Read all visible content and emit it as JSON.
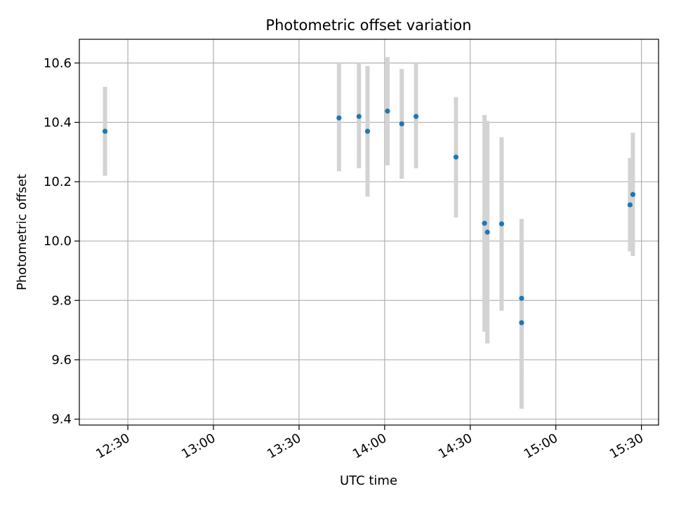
{
  "chart_data": {
    "type": "scatter",
    "title": "Photometric offset variation",
    "xlabel": "UTC time",
    "ylabel": "Photometric offset",
    "x_axis_kind": "time",
    "xlim": [
      "12:13",
      "15:36"
    ],
    "ylim": [
      9.38,
      10.68
    ],
    "xticks": [
      "12:30",
      "13:00",
      "13:30",
      "14:00",
      "14:30",
      "15:00",
      "15:30"
    ],
    "yticks": [
      9.4,
      9.6,
      9.8,
      10.0,
      10.2,
      10.4,
      10.6
    ],
    "ytick_labels": [
      "9.4",
      "9.6",
      "9.8",
      "10.0",
      "10.2",
      "10.4",
      "10.6"
    ],
    "grid": true,
    "colors": {
      "points": "#1f77b4",
      "errorbars": "#d3d3d3",
      "grid": "#b0b0b0"
    },
    "series": [
      {
        "points": [
          {
            "x": "12:22",
            "y": 10.37,
            "ylow": 10.22,
            "yhigh": 10.52
          },
          {
            "x": "13:44",
            "y": 10.415,
            "ylow": 10.235,
            "yhigh": 10.6
          },
          {
            "x": "13:51",
            "y": 10.42,
            "ylow": 10.245,
            "yhigh": 10.6
          },
          {
            "x": "13:54",
            "y": 10.37,
            "ylow": 10.15,
            "yhigh": 10.59
          },
          {
            "x": "14:01",
            "y": 10.438,
            "ylow": 10.255,
            "yhigh": 10.62
          },
          {
            "x": "14:06",
            "y": 10.395,
            "ylow": 10.21,
            "yhigh": 10.58
          },
          {
            "x": "14:11",
            "y": 10.42,
            "ylow": 10.245,
            "yhigh": 10.6
          },
          {
            "x": "14:25",
            "y": 10.283,
            "ylow": 10.08,
            "yhigh": 10.485
          },
          {
            "x": "14:35",
            "y": 10.06,
            "ylow": 9.695,
            "yhigh": 10.425
          },
          {
            "x": "14:36",
            "y": 10.03,
            "ylow": 9.655,
            "yhigh": 10.405
          },
          {
            "x": "14:41",
            "y": 10.058,
            "ylow": 9.765,
            "yhigh": 10.35
          },
          {
            "x": "14:48",
            "y": 9.807,
            "ylow": 9.54,
            "yhigh": 10.075
          },
          {
            "x": "14:48",
            "y": 9.725,
            "ylow": 9.435,
            "yhigh": 10.015
          },
          {
            "x": "15:26",
            "y": 10.122,
            "ylow": 9.965,
            "yhigh": 10.28
          },
          {
            "x": "15:27",
            "y": 10.157,
            "ylow": 9.95,
            "yhigh": 10.365
          }
        ]
      }
    ]
  }
}
